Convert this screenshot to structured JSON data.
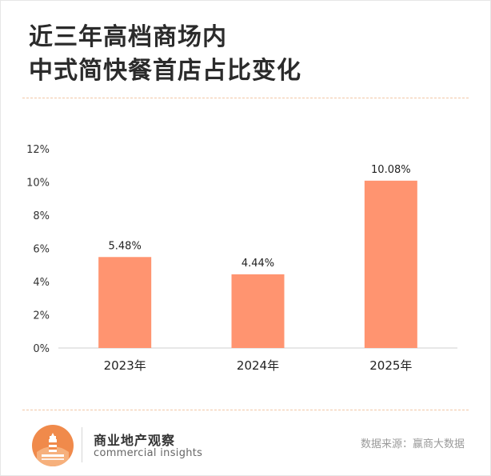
{
  "title": {
    "line1": "近三年高档商场内",
    "line2": "中式简快餐首店占比变化"
  },
  "chart_data": {
    "type": "bar",
    "categories": [
      "2023年",
      "2024年",
      "2025年"
    ],
    "values": [
      5.48,
      4.44,
      10.08
    ],
    "data_labels": [
      "5.48%",
      "4.44%",
      "10.08%"
    ],
    "ylim": [
      0,
      12
    ],
    "y_ticks": [
      "0%",
      "2%",
      "4%",
      "6%",
      "8%",
      "10%",
      "12%"
    ],
    "y_tick_values": [
      0,
      2,
      4,
      6,
      8,
      10,
      12
    ],
    "bar_color": "#ff9470",
    "grid": false
  },
  "footer": {
    "brand": "商业地产观察",
    "brand_sub": "commercial insights",
    "source": "数据来源：赢商大数据"
  },
  "colors": {
    "accent": "#ff9470",
    "logo": "#f08a4b"
  }
}
